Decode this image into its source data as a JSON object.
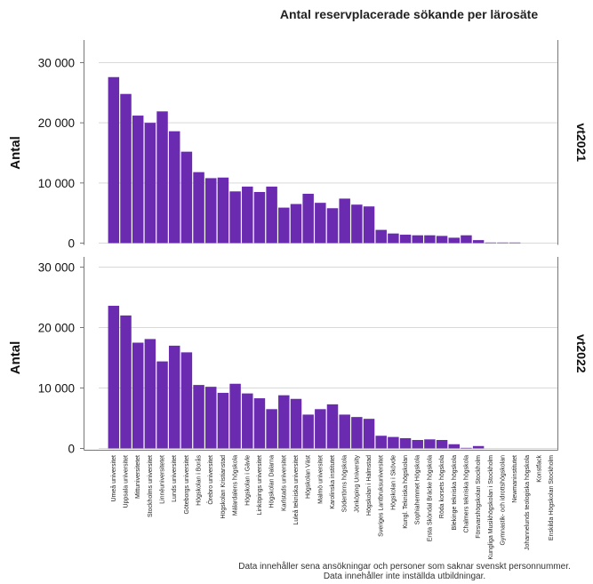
{
  "chart_data": {
    "type": "bar",
    "title": "Antal reservplacerade sökande per lärosäte",
    "ylabel": "Antal",
    "ylim": [
      0,
      32000
    ],
    "yticks": [
      0,
      10000,
      20000,
      30000
    ],
    "ytick_labels": [
      "0",
      "10 000",
      "20 000",
      "30 000"
    ],
    "grid": true,
    "bar_color": "#6a2bb0",
    "categories": [
      "Umeå universitet",
      "Uppsala universitet",
      "Mittuniversitetet",
      "Stockholms universitet",
      "Linnéuniversitetet",
      "Lunds universitet",
      "Göteborgs universitet",
      "Högskolan i Borås",
      "Örebro universitet",
      "Högskolan Kristianstad",
      "Mälardalens högskola",
      "Högskolan i Gävle",
      "Linköpings universitet",
      "Högskolan Dalarna",
      "Karlstads universitet",
      "Luleå tekniska universitet",
      "Högskolan Väst",
      "Malmö universitet",
      "Karolinska institutet",
      "Södertörns högskola",
      "Jönköping University",
      "Högskolan i Halmstad",
      "Sveriges Lantbruksuniversitet",
      "Högskolan i Skövde",
      "Kungl. Tekniska högskolan",
      "Sophiahemmet Högskola",
      "Ersta Sköndal Bräcke högskola",
      "Röda korsets högskola",
      "Blekinge tekniska högskola",
      "Chalmers tekniska högskola",
      "Försvarshögskolan Stockholm",
      "Kungliga Musikhögskolan i Stockholm",
      "Gymnastik- och idrottshögskolan",
      "Newmaninstitutet",
      "Johannelunds teologiska högskola",
      "Konstfack",
      "Enskilda Högskolan Stockholm"
    ],
    "series": [
      {
        "name": "vt2021",
        "values": [
          27600,
          24800,
          21200,
          20000,
          21900,
          18600,
          15200,
          11800,
          10800,
          10900,
          8600,
          9400,
          8500,
          9400,
          5900,
          6500,
          8200,
          6700,
          5800,
          7400,
          6400,
          6100,
          2200,
          1600,
          1400,
          1300,
          1300,
          1200,
          900,
          1300,
          500,
          100,
          100,
          100,
          0,
          0,
          0
        ]
      },
      {
        "name": "vt2022",
        "values": [
          23600,
          22000,
          17500,
          18100,
          14400,
          17000,
          15900,
          10500,
          10200,
          9200,
          10700,
          9100,
          8300,
          6500,
          8800,
          8200,
          5600,
          6500,
          7300,
          5600,
          5200,
          4900,
          2100,
          1900,
          1700,
          1400,
          1500,
          1400,
          700,
          100,
          400,
          0,
          0,
          0,
          0,
          0,
          0
        ]
      }
    ]
  },
  "footnotes": [
    "Data innehåller sena ansökningar och personer som saknar svenskt personnummer.",
    "Data innehåller inte inställda utbildningar."
  ]
}
